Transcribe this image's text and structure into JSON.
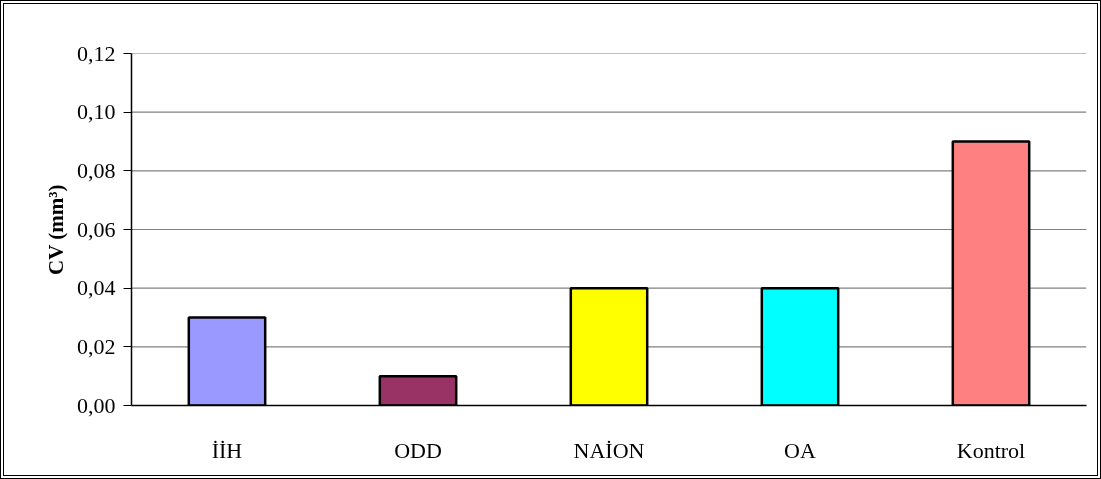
{
  "chart_data": {
    "type": "bar",
    "ylabel": "CV (mm³)",
    "categories": [
      "İİH",
      "ODD",
      "NAİON",
      "OA",
      "Kontrol"
    ],
    "values": [
      0.03,
      0.01,
      0.04,
      0.04,
      0.09
    ],
    "colors": [
      "#9999ff",
      "#993366",
      "#ffff00",
      "#00ffff",
      "#ff8080"
    ],
    "ylim": [
      0,
      0.12
    ],
    "yticks": [
      {
        "value": 0,
        "label": "0,00"
      },
      {
        "value": 0.02,
        "label": "0,02"
      },
      {
        "value": 0.04,
        "label": "0,04"
      },
      {
        "value": 0.06,
        "label": "0,06"
      },
      {
        "value": 0.08,
        "label": "0,08"
      },
      {
        "value": 0.1,
        "label": "0,10"
      },
      {
        "value": 0.12,
        "label": "0,12"
      }
    ],
    "grid": "y"
  }
}
